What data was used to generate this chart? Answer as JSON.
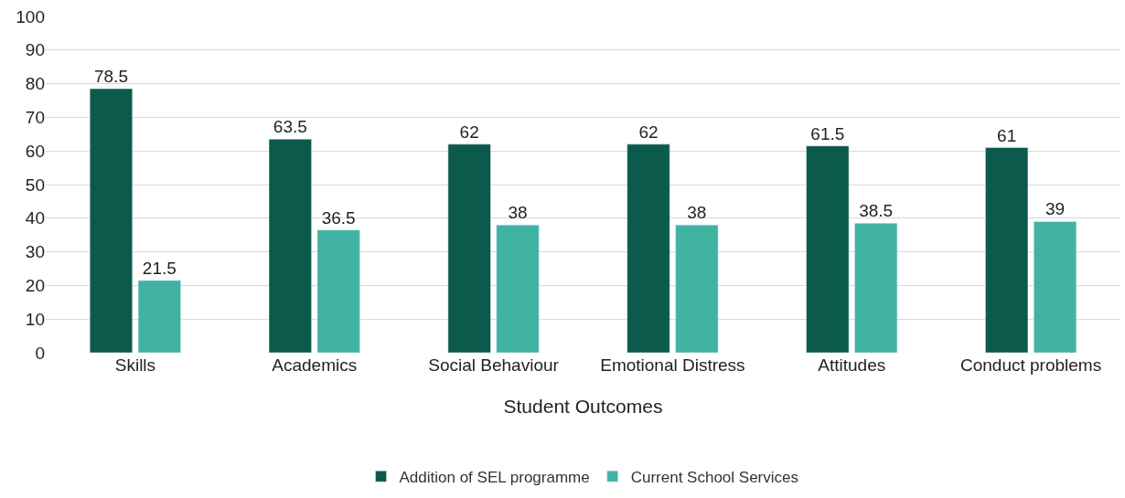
{
  "chart_data": {
    "type": "bar",
    "xlabel": "Student Outcomes",
    "categories": [
      "Skills",
      "Academics",
      "Social Behaviour",
      "Emotional Distress",
      "Attitudes",
      "Conduct problems"
    ],
    "series": [
      {
        "name": "Addition of SEL programme",
        "color": "#0b5a4b",
        "values": [
          78.5,
          63.5,
          62,
          62,
          61.5,
          61
        ]
      },
      {
        "name": "Current School Services",
        "color": "#41b3a3",
        "values": [
          21.5,
          36.5,
          38,
          38,
          38.5,
          39
        ]
      }
    ],
    "ylim": [
      0,
      100
    ],
    "yticks": [
      0,
      10,
      20,
      30,
      40,
      50,
      60,
      70,
      80,
      90,
      100
    ],
    "grid": "y",
    "legend": "bottom",
    "data_labels": true
  }
}
